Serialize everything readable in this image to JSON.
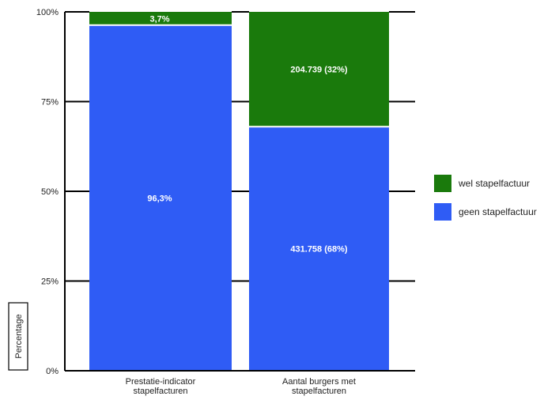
{
  "chart_data": {
    "type": "bar",
    "stacked": true,
    "categories": [
      [
        "Prestatie-indicator",
        "stapelfacturen"
      ],
      [
        "Aantal burgers met",
        "stapelfacturen"
      ]
    ],
    "series": [
      {
        "name": "geen stapelfactuur",
        "color": "#2f5cf5",
        "values": [
          96.3,
          68
        ],
        "labels": [
          "96,3%",
          "431.758 (68%)"
        ]
      },
      {
        "name": "wel stapelfactuur",
        "color": "#1a7a0c",
        "values": [
          3.7,
          32
        ],
        "labels": [
          "3,7%",
          "204.739 (32%)"
        ]
      }
    ],
    "ylabel": "Percentage",
    "ylim": [
      0,
      100
    ],
    "yticks": [
      {
        "value": 0,
        "label": "0%"
      },
      {
        "value": 25,
        "label": "25%"
      },
      {
        "value": 50,
        "label": "50%"
      },
      {
        "value": 75,
        "label": "75%"
      },
      {
        "value": 100,
        "label": "100%"
      }
    ],
    "legend_order": [
      "wel stapelfactuur",
      "geen stapelfactuur"
    ],
    "legend_position": "right",
    "grid": "tick-lines"
  }
}
